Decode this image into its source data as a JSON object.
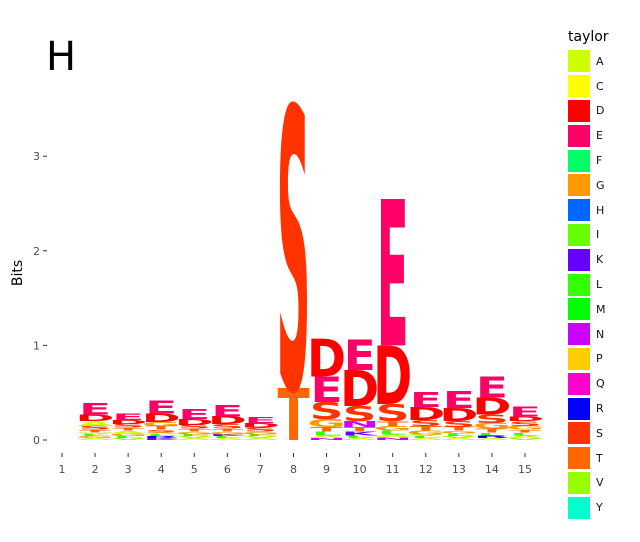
{
  "chart_data": {
    "type": "sequence-logo",
    "panel_label": "H",
    "ylabel": "Bits",
    "xlabel": "",
    "ylim": [
      0,
      3.6
    ],
    "y_ticks": [
      "0",
      "1",
      "2",
      "3"
    ],
    "x_ticks": [
      "1",
      "2",
      "3",
      "4",
      "5",
      "6",
      "7",
      "8",
      "9",
      "10",
      "11",
      "12",
      "13",
      "14",
      "15"
    ],
    "grid": false,
    "legend_position": "right",
    "legend": {
      "title": "taylor",
      "items": [
        {
          "letter": "A",
          "color": "#CCFF00"
        },
        {
          "letter": "C",
          "color": "#FFFF00"
        },
        {
          "letter": "D",
          "color": "#FF0000"
        },
        {
          "letter": "E",
          "color": "#FF0066"
        },
        {
          "letter": "F",
          "color": "#00FF66"
        },
        {
          "letter": "G",
          "color": "#FF9900"
        },
        {
          "letter": "H",
          "color": "#0066FF"
        },
        {
          "letter": "I",
          "color": "#66FF00"
        },
        {
          "letter": "K",
          "color": "#6600FF"
        },
        {
          "letter": "L",
          "color": "#33FF00"
        },
        {
          "letter": "M",
          "color": "#00FF00"
        },
        {
          "letter": "N",
          "color": "#CC00FF"
        },
        {
          "letter": "P",
          "color": "#FFCC00"
        },
        {
          "letter": "Q",
          "color": "#FF00CC"
        },
        {
          "letter": "R",
          "color": "#0000FF"
        },
        {
          "letter": "S",
          "color": "#FF3300"
        },
        {
          "letter": "T",
          "color": "#FF6600"
        },
        {
          "letter": "V",
          "color": "#99FF00"
        },
        {
          "letter": "Y",
          "color": "#00FFCC"
        }
      ]
    },
    "positions": [
      {
        "pos": 1,
        "stack": []
      },
      {
        "pos": 2,
        "stack": [
          [
            "A",
            0.02
          ],
          [
            "G",
            0.02
          ],
          [
            "L",
            0.02
          ],
          [
            "V",
            0.02
          ],
          [
            "T",
            0.03
          ],
          [
            "S",
            0.04
          ],
          [
            "A",
            0.05
          ],
          [
            "D",
            0.07
          ],
          [
            "E",
            0.12
          ]
        ]
      },
      {
        "pos": 3,
        "stack": [
          [
            "V",
            0.02
          ],
          [
            "L",
            0.02
          ],
          [
            "G",
            0.03
          ],
          [
            "A",
            0.03
          ],
          [
            "T",
            0.03
          ],
          [
            "S",
            0.04
          ],
          [
            "D",
            0.04
          ],
          [
            "E",
            0.07
          ]
        ]
      },
      {
        "pos": 4,
        "stack": [
          [
            "K",
            0.02
          ],
          [
            "R",
            0.02
          ],
          [
            "L",
            0.02
          ],
          [
            "A",
            0.02
          ],
          [
            "S",
            0.03
          ],
          [
            "T",
            0.04
          ],
          [
            "G",
            0.04
          ],
          [
            "D",
            0.09
          ],
          [
            "E",
            0.14
          ]
        ]
      },
      {
        "pos": 5,
        "stack": [
          [
            "A",
            0.02
          ],
          [
            "V",
            0.02
          ],
          [
            "L",
            0.02
          ],
          [
            "G",
            0.03
          ],
          [
            "T",
            0.03
          ],
          [
            "S",
            0.04
          ],
          [
            "D",
            0.06
          ],
          [
            "E",
            0.1
          ]
        ]
      },
      {
        "pos": 6,
        "stack": [
          [
            "A",
            0.02
          ],
          [
            "L",
            0.02
          ],
          [
            "K",
            0.02
          ],
          [
            "G",
            0.03
          ],
          [
            "T",
            0.03
          ],
          [
            "S",
            0.05
          ],
          [
            "D",
            0.08
          ],
          [
            "E",
            0.12
          ]
        ]
      },
      {
        "pos": 7,
        "stack": [
          [
            "A",
            0.02
          ],
          [
            "V",
            0.02
          ],
          [
            "L",
            0.02
          ],
          [
            "G",
            0.03
          ],
          [
            "S",
            0.04
          ],
          [
            "D",
            0.05
          ],
          [
            "E",
            0.06
          ]
        ]
      },
      {
        "pos": 8,
        "stack": [
          [
            "T",
            0.55
          ],
          [
            "S",
            2.98
          ]
        ]
      },
      {
        "pos": 9,
        "stack": [
          [
            "N",
            0.02
          ],
          [
            "A",
            0.03
          ],
          [
            "L",
            0.04
          ],
          [
            "T",
            0.05
          ],
          [
            "G",
            0.08
          ],
          [
            "S",
            0.18
          ],
          [
            "E",
            0.27
          ],
          [
            "D",
            0.4
          ]
        ]
      },
      {
        "pos": 10,
        "stack": [
          [
            "A",
            0.02
          ],
          [
            "L",
            0.03
          ],
          [
            "K",
            0.04
          ],
          [
            "T",
            0.05
          ],
          [
            "N",
            0.06
          ],
          [
            "S",
            0.16
          ],
          [
            "D",
            0.38
          ],
          [
            "E",
            0.32
          ]
        ]
      },
      {
        "pos": 11,
        "stack": [
          [
            "N",
            0.03
          ],
          [
            "A",
            0.03
          ],
          [
            "L",
            0.04
          ],
          [
            "G",
            0.05
          ],
          [
            "T",
            0.05
          ],
          [
            "S",
            0.18
          ],
          [
            "D",
            0.62
          ],
          [
            "E",
            1.55
          ]
        ]
      },
      {
        "pos": 12,
        "stack": [
          [
            "A",
            0.02
          ],
          [
            "L",
            0.02
          ],
          [
            "V",
            0.02
          ],
          [
            "G",
            0.04
          ],
          [
            "T",
            0.05
          ],
          [
            "S",
            0.06
          ],
          [
            "D",
            0.14
          ],
          [
            "E",
            0.16
          ]
        ]
      },
      {
        "pos": 13,
        "stack": [
          [
            "A",
            0.02
          ],
          [
            "V",
            0.02
          ],
          [
            "L",
            0.03
          ],
          [
            "G",
            0.03
          ],
          [
            "T",
            0.04
          ],
          [
            "S",
            0.06
          ],
          [
            "D",
            0.14
          ],
          [
            "E",
            0.18
          ]
        ]
      },
      {
        "pos": 14,
        "stack": [
          [
            "A",
            0.02
          ],
          [
            "R",
            0.03
          ],
          [
            "L",
            0.03
          ],
          [
            "T",
            0.04
          ],
          [
            "G",
            0.06
          ],
          [
            "S",
            0.09
          ],
          [
            "D",
            0.18
          ],
          [
            "E",
            0.22
          ]
        ]
      },
      {
        "pos": 15,
        "stack": [
          [
            "V",
            0.02
          ],
          [
            "A",
            0.03
          ],
          [
            "L",
            0.03
          ],
          [
            "T",
            0.03
          ],
          [
            "G",
            0.04
          ],
          [
            "S",
            0.05
          ],
          [
            "D",
            0.05
          ],
          [
            "E",
            0.1
          ]
        ]
      }
    ]
  }
}
